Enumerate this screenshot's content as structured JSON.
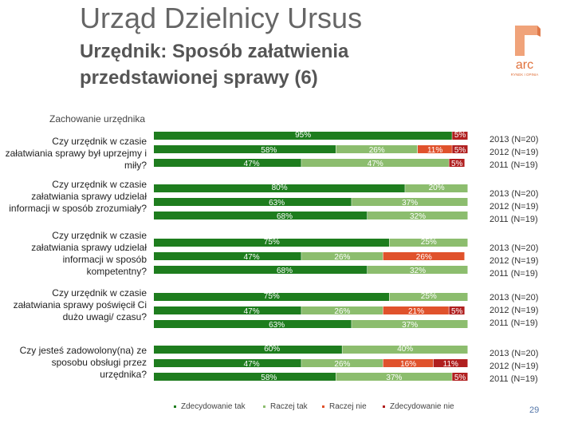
{
  "header": {
    "title": "Urząd Dzielnicy Ursus",
    "subtitle": "Urzędnik: Sposób załatwienia przedstawionej sprawy (6)",
    "section": "Zachowanie urzędnika",
    "page_number": "29"
  },
  "logo": {
    "text": "arc",
    "tagline": "RYNEK I OPINIA"
  },
  "colors": {
    "zdecydowanie_tak": "#1e7d1e",
    "raczej_tak": "#8cbd6e",
    "raczej_nie": "#e0522c",
    "zdecydowanie_nie": "#b01f1f"
  },
  "chart_data": {
    "type": "bar",
    "orientation": "horizontal-stacked",
    "title": "Zachowanie urzędnika",
    "series_names": [
      "Zdecydowanie tak",
      "Raczej tak",
      "Raczej nie",
      "Zdecydowanie nie"
    ],
    "legend": [
      "Zdecydowanie tak",
      "Raczej tak",
      "Raczej nie",
      "Zdecydowanie nie"
    ],
    "legend_position": "bottom",
    "xlim": [
      0,
      100
    ],
    "unit": "%",
    "questions": [
      {
        "label": "Czy urzędnik w czasie załatwiania sprawy był uprzejmy i miły?",
        "rows": [
          {
            "year": "2013 (N=20)",
            "values": [
              95,
              0,
              0,
              5
            ],
            "labels": [
              "95%",
              "",
              "",
              "5%"
            ]
          },
          {
            "year": "2012 (N=19)",
            "values": [
              58,
              26,
              11,
              5
            ],
            "labels": [
              "58%",
              "26%",
              "11%",
              "5%"
            ]
          },
          {
            "year": "2011 (N=19)",
            "values": [
              47,
              47,
              0,
              5
            ],
            "labels": [
              "47%",
              "47%",
              "",
              "5%"
            ]
          }
        ]
      },
      {
        "label": "Czy urzędnik w czasie załatwiania sprawy udzielał informacji w sposób zrozumiały?",
        "rows": [
          {
            "year": "2013 (N=20)",
            "values": [
              80,
              20,
              0,
              0
            ],
            "labels": [
              "80%",
              "20%",
              "",
              ""
            ]
          },
          {
            "year": "2012 (N=19)",
            "values": [
              63,
              37,
              0,
              0
            ],
            "labels": [
              "63%",
              "37%",
              "",
              ""
            ]
          },
          {
            "year": "2011 (N=19)",
            "values": [
              68,
              32,
              0,
              0
            ],
            "labels": [
              "68%",
              "32%",
              "",
              ""
            ]
          }
        ]
      },
      {
        "label": "Czy urzędnik w czasie załatwiania sprawy udzielał informacji w sposób kompetentny?",
        "rows": [
          {
            "year": "2013 (N=20)",
            "values": [
              75,
              25,
              0,
              0
            ],
            "labels": [
              "75%",
              "25%",
              "",
              ""
            ]
          },
          {
            "year": "2012 (N=19)",
            "values": [
              47,
              26,
              26,
              0
            ],
            "labels": [
              "47%",
              "26%",
              "26%",
              ""
            ]
          },
          {
            "year": "2011 (N=19)",
            "values": [
              68,
              32,
              0,
              0
            ],
            "labels": [
              "68%",
              "32%",
              "",
              ""
            ]
          }
        ]
      },
      {
        "label": "Czy urzędnik w czasie załatwiania sprawy poświęcił Ci dużo uwagi/ czasu?",
        "rows": [
          {
            "year": "2013 (N=20)",
            "values": [
              75,
              25,
              0,
              0
            ],
            "labels": [
              "75%",
              "25%",
              "",
              ""
            ]
          },
          {
            "year": "2012 (N=19)",
            "values": [
              47,
              26,
              21,
              5
            ],
            "labels": [
              "47%",
              "26%",
              "21%",
              "5%"
            ]
          },
          {
            "year": "2011 (N=19)",
            "values": [
              63,
              37,
              0,
              0
            ],
            "labels": [
              "63%",
              "37%",
              "",
              ""
            ]
          }
        ]
      },
      {
        "label": "Czy jesteś zadowolony(na) ze sposobu obsługi przez urzędnika?",
        "rows": [
          {
            "year": "2013 (N=20)",
            "values": [
              60,
              40,
              0,
              0
            ],
            "labels": [
              "60%",
              "40%",
              "",
              ""
            ]
          },
          {
            "year": "2012 (N=19)",
            "values": [
              47,
              26,
              16,
              11
            ],
            "labels": [
              "47%",
              "26%",
              "16%",
              "11%"
            ]
          },
          {
            "year": "2011 (N=19)",
            "values": [
              58,
              37,
              0,
              5
            ],
            "labels": [
              "58%",
              "37%",
              "",
              "5%"
            ]
          }
        ]
      }
    ]
  }
}
